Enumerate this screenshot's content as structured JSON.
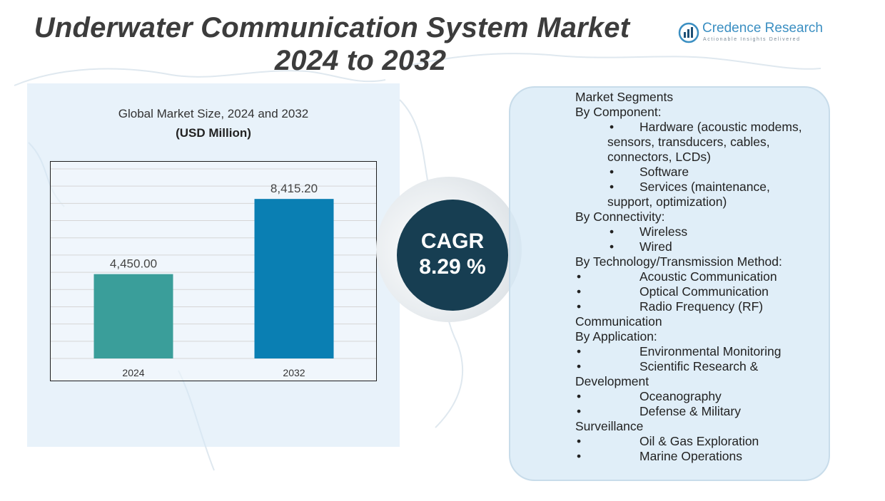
{
  "header": {
    "title_line1": "Underwater Communication System Market",
    "title_line2": "2024 to 2032"
  },
  "logo": {
    "name": "Credence Research",
    "tagline": "Actionable Insights Delivered"
  },
  "chart_header": {
    "title": "Global Market Size,  2024 and 2032",
    "unit": "(USD Million)"
  },
  "chart_data": {
    "type": "bar",
    "title": "Global Market Size,  2024 and 2032",
    "ylabel": "(USD Million)",
    "categories": [
      "2024",
      "2032"
    ],
    "values": [
      4450.0,
      8415.2
    ],
    "value_labels": [
      "4,450.00",
      "8,415.20"
    ],
    "colors": [
      "#3a9e9a",
      "#0a7fb3"
    ],
    "ylim": [
      0,
      10000
    ],
    "grid": true
  },
  "cagr": {
    "label": "CAGR",
    "value": "8.29 %"
  },
  "segments": {
    "heading": "Market Segments",
    "lines": [
      {
        "kind": "head",
        "text": "By Component:"
      },
      {
        "kind": "item",
        "text": "Hardware (acoustic modems,"
      },
      {
        "kind": "cont",
        "text": "sensors, transducers, cables,"
      },
      {
        "kind": "cont",
        "text": "connectors, LCDs)"
      },
      {
        "kind": "item",
        "text": "Software"
      },
      {
        "kind": "item",
        "text": "Services (maintenance,"
      },
      {
        "kind": "cont",
        "text": "support, optimization)"
      },
      {
        "kind": "head",
        "text": "By Connectivity:"
      },
      {
        "kind": "item",
        "text": "Wireless"
      },
      {
        "kind": "item",
        "text": "Wired"
      },
      {
        "kind": "head",
        "text": "By Technology/Transmission Method:"
      },
      {
        "kind": "item2",
        "text": "Acoustic Communication"
      },
      {
        "kind": "item2",
        "text": "Optical Communication"
      },
      {
        "kind": "item2",
        "text": "Radio Frequency (RF)"
      },
      {
        "kind": "head",
        "text": "Communication"
      },
      {
        "kind": "head",
        "text": "By Application:"
      },
      {
        "kind": "item2",
        "text": "Environmental Monitoring"
      },
      {
        "kind": "item2",
        "text": "Scientific Research &"
      },
      {
        "kind": "head",
        "text": "Development"
      },
      {
        "kind": "item2",
        "text": "Oceanography"
      },
      {
        "kind": "item2",
        "text": "Defense & Military"
      },
      {
        "kind": "head",
        "text": "Surveillance"
      },
      {
        "kind": "item2",
        "text": "Oil & Gas Exploration"
      },
      {
        "kind": "item2",
        "text": "Marine Operations"
      }
    ],
    "bullet": "•"
  }
}
